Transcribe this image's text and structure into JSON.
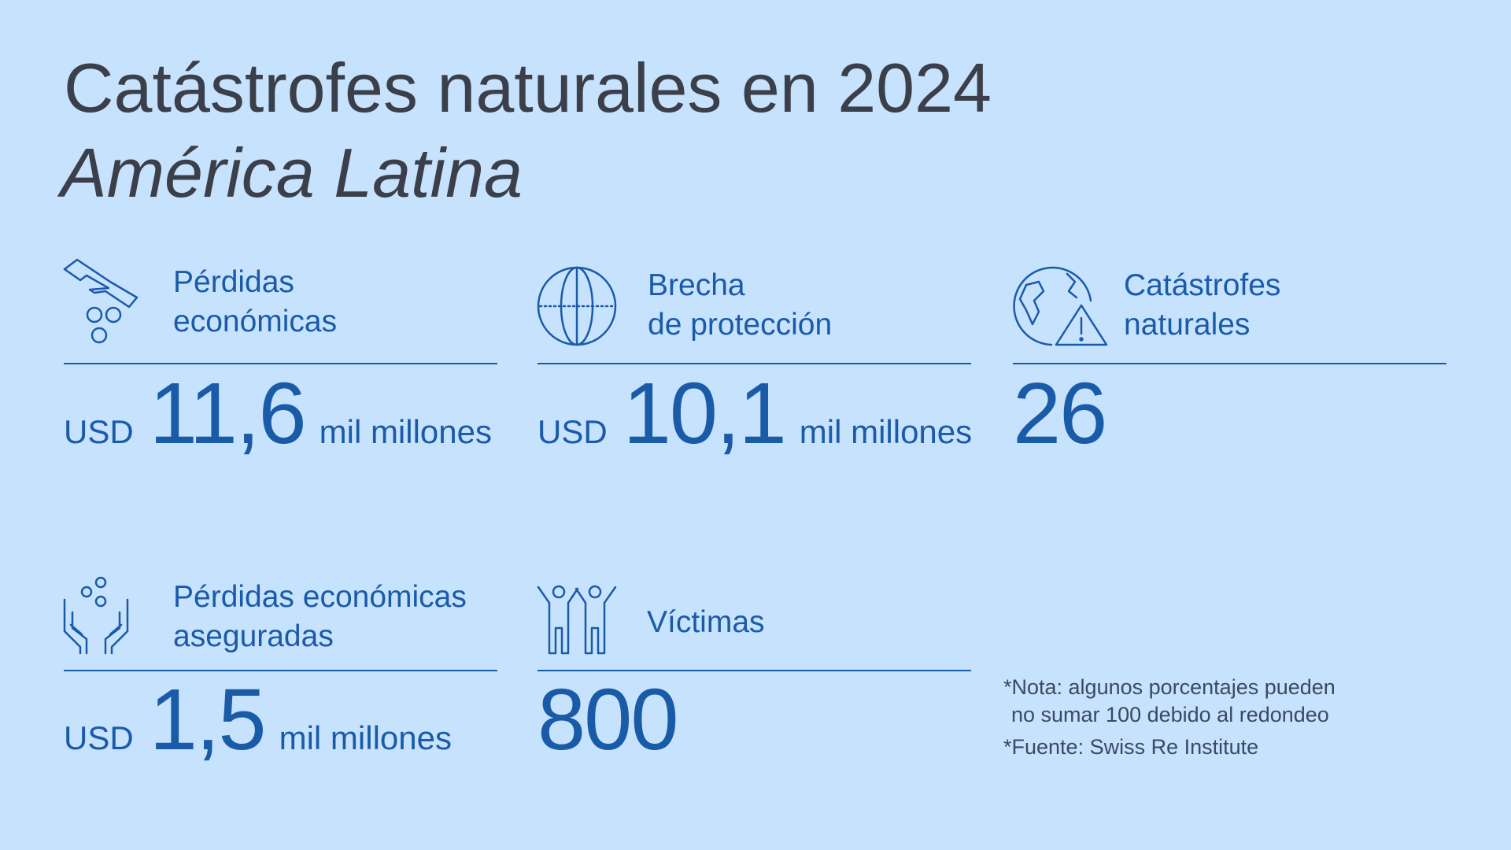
{
  "header": {
    "title": "Catástrofes naturales en 2024",
    "subtitle": "América Latina"
  },
  "stats": [
    {
      "label": [
        "Pérdidas",
        "económicas"
      ],
      "prefix": "USD",
      "value": "11,6",
      "suffix": "mil millones"
    },
    {
      "label": [
        "Brecha",
        "de protección"
      ],
      "prefix": "USD",
      "value": "10,1",
      "suffix": "mil millones"
    },
    {
      "label": [
        "Catástrofes",
        "naturales"
      ],
      "value": "26"
    },
    {
      "label": [
        "Pérdidas económicas",
        "aseguradas"
      ],
      "prefix": "USD",
      "value": "1,5",
      "suffix": "mil millones"
    },
    {
      "label": [
        "Víctimas"
      ],
      "value": "800"
    }
  ],
  "notes": [
    "*Nota: algunos porcentajes pueden",
    "no sumar 100 debido al redondeo",
    "*Fuente: Swiss Re Institute"
  ]
}
